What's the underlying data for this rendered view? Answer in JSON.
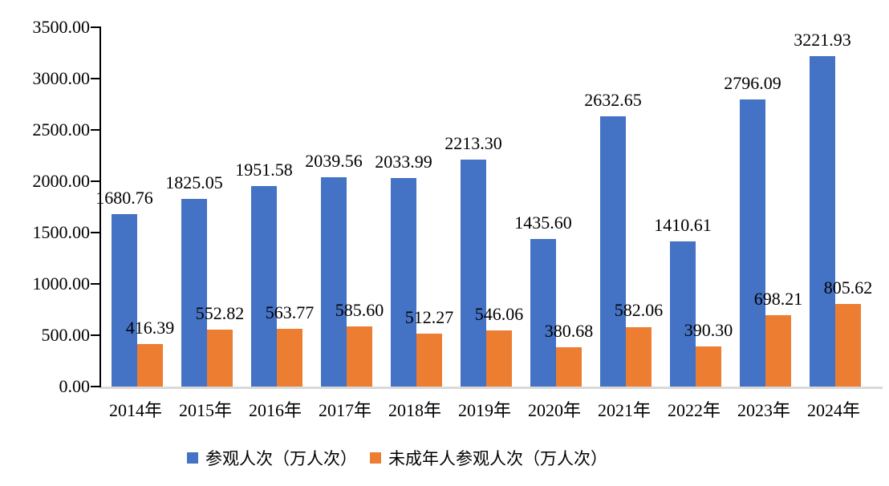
{
  "chart_data": {
    "type": "bar",
    "title": "",
    "xlabel": "",
    "ylabel": "",
    "grid": false,
    "legend_position": "bottom",
    "ylim": [
      0,
      3500
    ],
    "ytick_step": 500,
    "yticks": [
      {
        "value": 0,
        "label": "0.00"
      },
      {
        "value": 500,
        "label": "500.00"
      },
      {
        "value": 1000,
        "label": "1000.00"
      },
      {
        "value": 1500,
        "label": "1500.00"
      },
      {
        "value": 2000,
        "label": "2000.00"
      },
      {
        "value": 2500,
        "label": "2500.00"
      },
      {
        "value": 3000,
        "label": "3000.00"
      },
      {
        "value": 3500,
        "label": "3500.00"
      }
    ],
    "categories": [
      "2014年",
      "2015年",
      "2016年",
      "2017年",
      "2018年",
      "2019年",
      "2020年",
      "2021年",
      "2022年",
      "2023年",
      "2024年"
    ],
    "series": [
      {
        "name": "参观人次（万人次）",
        "color": "#4472C4",
        "values": [
          1680.76,
          1825.05,
          1951.58,
          2039.56,
          2033.99,
          2213.3,
          1435.6,
          2632.65,
          1410.61,
          2796.09,
          3221.93
        ],
        "labels": [
          "1680.76",
          "1825.05",
          "1951.58",
          "2039.56",
          "2033.99",
          "2213.30",
          "1435.60",
          "2632.65",
          "1410.61",
          "2796.09",
          "3221.93"
        ]
      },
      {
        "name": "未成年人参观人次（万人次）",
        "color": "#ED7D31",
        "values": [
          416.39,
          552.82,
          563.77,
          585.6,
          512.27,
          546.06,
          380.68,
          582.06,
          390.3,
          698.21,
          805.62
        ],
        "labels": [
          "416.39",
          "552.82",
          "563.77",
          "585.60",
          "512.27",
          "546.06",
          "380.68",
          "582.06",
          "390.30",
          "698.21",
          "805.62"
        ]
      }
    ],
    "colors": {
      "axis_line": "#000000",
      "baseline": "#D9D9D9",
      "text": "#000000",
      "background": "#FFFFFF"
    }
  }
}
